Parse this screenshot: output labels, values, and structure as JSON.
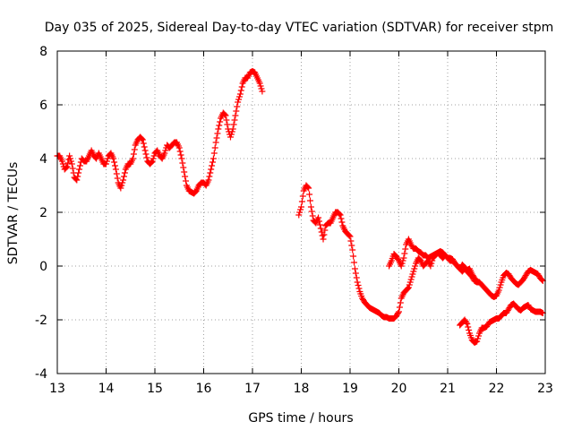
{
  "chart_data": {
    "type": "scatter",
    "title": "Day 035 of 2025, Sidereal Day-to-day VTEC variation (SDTVAR) for receiver stpm",
    "xlabel": "GPS time / hours",
    "ylabel": "SDTVAR / TECUs",
    "xlim": [
      13,
      23
    ],
    "ylim": [
      -4,
      8
    ],
    "xticks": [
      13,
      14,
      15,
      16,
      17,
      18,
      19,
      20,
      21,
      22,
      23
    ],
    "yticks": [
      -4,
      -2,
      0,
      2,
      4,
      6,
      8
    ],
    "grid": true,
    "marker": "+",
    "color": "#ff0000",
    "series": [
      {
        "segments": [
          [
            [
              13.0,
              4.1
            ],
            [
              13.05,
              4.1
            ],
            [
              13.1,
              3.9
            ],
            [
              13.15,
              3.6
            ],
            [
              13.2,
              3.7
            ],
            [
              13.25,
              4.1
            ],
            [
              13.3,
              3.8
            ],
            [
              13.35,
              3.3
            ],
            [
              13.4,
              3.2
            ],
            [
              13.45,
              3.6
            ],
            [
              13.5,
              4.0
            ],
            [
              13.55,
              3.9
            ],
            [
              13.6,
              3.9
            ],
            [
              13.65,
              4.1
            ],
            [
              13.7,
              4.3
            ],
            [
              13.75,
              4.1
            ],
            [
              13.8,
              4.0
            ],
            [
              13.85,
              4.2
            ],
            [
              13.9,
              4.0
            ],
            [
              13.95,
              3.8
            ],
            [
              14.0,
              3.8
            ],
            [
              14.05,
              4.1
            ],
            [
              14.1,
              4.2
            ],
            [
              14.15,
              4.0
            ],
            [
              14.2,
              3.6
            ],
            [
              14.25,
              3.1
            ],
            [
              14.3,
              2.9
            ],
            [
              14.35,
              3.2
            ],
            [
              14.4,
              3.6
            ],
            [
              14.45,
              3.8
            ],
            [
              14.5,
              3.8
            ],
            [
              14.55,
              4.0
            ],
            [
              14.6,
              4.5
            ],
            [
              14.65,
              4.7
            ],
            [
              14.7,
              4.8
            ],
            [
              14.75,
              4.7
            ],
            [
              14.8,
              4.3
            ],
            [
              14.85,
              3.9
            ],
            [
              14.9,
              3.8
            ],
            [
              14.95,
              3.9
            ],
            [
              15.0,
              4.2
            ],
            [
              15.05,
              4.3
            ],
            [
              15.1,
              4.1
            ],
            [
              15.15,
              4.0
            ],
            [
              15.2,
              4.2
            ],
            [
              15.25,
              4.5
            ],
            [
              15.3,
              4.4
            ],
            [
              15.35,
              4.5
            ],
            [
              15.4,
              4.6
            ],
            [
              15.45,
              4.6
            ],
            [
              15.5,
              4.4
            ],
            [
              15.55,
              4.0
            ],
            [
              15.6,
              3.5
            ],
            [
              15.65,
              3.0
            ],
            [
              15.7,
              2.8
            ],
            [
              15.75,
              2.75
            ],
            [
              15.8,
              2.7
            ],
            [
              15.85,
              2.8
            ],
            [
              15.9,
              3.0
            ],
            [
              15.95,
              3.1
            ],
            [
              16.0,
              3.1
            ],
            [
              16.05,
              3.0
            ],
            [
              16.1,
              3.2
            ],
            [
              16.15,
              3.6
            ],
            [
              16.2,
              4.0
            ],
            [
              16.25,
              4.6
            ],
            [
              16.3,
              5.1
            ],
            [
              16.35,
              5.5
            ],
            [
              16.4,
              5.7
            ],
            [
              16.45,
              5.6
            ],
            [
              16.5,
              5.1
            ],
            [
              16.55,
              4.8
            ],
            [
              16.6,
              5.1
            ],
            [
              16.65,
              5.6
            ],
            [
              16.7,
              6.1
            ],
            [
              16.75,
              6.4
            ],
            [
              16.8,
              6.8
            ],
            [
              16.85,
              7.0
            ],
            [
              16.9,
              7.0
            ],
            [
              16.95,
              7.2
            ],
            [
              17.0,
              7.25
            ],
            [
              17.05,
              7.2
            ],
            [
              17.1,
              7.0
            ],
            [
              17.15,
              6.8
            ],
            [
              17.2,
              6.5
            ]
          ],
          [
            [
              17.95,
              1.9
            ],
            [
              18.0,
              2.2
            ],
            [
              18.05,
              2.8
            ],
            [
              18.1,
              3.0
            ],
            [
              18.15,
              2.9
            ],
            [
              18.2,
              2.2
            ],
            [
              18.25,
              1.7
            ],
            [
              18.3,
              1.6
            ],
            [
              18.35,
              1.8
            ],
            [
              18.4,
              1.4
            ],
            [
              18.45,
              1.0
            ],
            [
              18.5,
              1.5
            ],
            [
              18.55,
              1.6
            ],
            [
              18.6,
              1.6
            ],
            [
              18.65,
              1.8
            ],
            [
              18.7,
              2.0
            ],
            [
              18.75,
              2.0
            ],
            [
              18.8,
              1.9
            ],
            [
              18.85,
              1.5
            ],
            [
              18.9,
              1.3
            ],
            [
              18.95,
              1.2
            ],
            [
              19.0,
              1.1
            ],
            [
              19.05,
              0.6
            ],
            [
              19.1,
              -0.1
            ],
            [
              19.15,
              -0.6
            ],
            [
              19.2,
              -0.95
            ],
            [
              19.25,
              -1.2
            ],
            [
              19.3,
              -1.35
            ],
            [
              19.35,
              -1.45
            ],
            [
              19.4,
              -1.55
            ],
            [
              19.45,
              -1.6
            ],
            [
              19.5,
              -1.65
            ],
            [
              19.55,
              -1.7
            ],
            [
              19.6,
              -1.75
            ],
            [
              19.65,
              -1.85
            ],
            [
              19.7,
              -1.9
            ],
            [
              19.75,
              -1.9
            ],
            [
              19.8,
              -1.95
            ],
            [
              19.85,
              -1.95
            ],
            [
              19.9,
              -1.95
            ],
            [
              19.95,
              -1.85
            ],
            [
              20.0,
              -1.7
            ],
            [
              20.05,
              -1.2
            ],
            [
              20.1,
              -1.0
            ],
            [
              20.15,
              -0.9
            ],
            [
              20.2,
              -0.8
            ],
            [
              20.25,
              -0.5
            ],
            [
              20.3,
              -0.2
            ],
            [
              20.35,
              0.1
            ],
            [
              20.4,
              0.3
            ],
            [
              20.45,
              0.2
            ],
            [
              20.5,
              0.0
            ],
            [
              20.55,
              0.1
            ],
            [
              20.6,
              0.2
            ],
            [
              20.65,
              0.0
            ],
            [
              20.7,
              0.3
            ],
            [
              20.75,
              0.4
            ],
            [
              20.8,
              0.5
            ],
            [
              20.85,
              0.4
            ],
            [
              20.9,
              0.3
            ],
            [
              20.95,
              0.4
            ],
            [
              21.0,
              0.3
            ],
            [
              21.05,
              0.2
            ],
            [
              21.1,
              0.2
            ],
            [
              21.15,
              0.1
            ],
            [
              21.2,
              0.0
            ],
            [
              21.25,
              -0.1
            ],
            [
              21.3,
              -0.2
            ],
            [
              21.35,
              -0.1
            ],
            [
              21.4,
              -0.2
            ],
            [
              21.45,
              -0.3
            ],
            [
              21.5,
              -0.4
            ],
            [
              21.55,
              -0.55
            ],
            [
              21.6,
              -0.6
            ],
            [
              21.65,
              -0.6
            ],
            [
              21.7,
              -0.7
            ],
            [
              21.75,
              -0.8
            ],
            [
              21.8,
              -0.9
            ],
            [
              21.85,
              -1.0
            ],
            [
              21.9,
              -1.1
            ],
            [
              21.95,
              -1.15
            ],
            [
              22.0,
              -1.1
            ],
            [
              22.05,
              -0.9
            ],
            [
              22.1,
              -0.6
            ],
            [
              22.15,
              -0.35
            ],
            [
              22.2,
              -0.25
            ],
            [
              22.25,
              -0.3
            ],
            [
              22.3,
              -0.45
            ],
            [
              22.35,
              -0.55
            ],
            [
              22.4,
              -0.65
            ],
            [
              22.45,
              -0.7
            ],
            [
              22.5,
              -0.6
            ],
            [
              22.55,
              -0.5
            ],
            [
              22.6,
              -0.35
            ],
            [
              22.65,
              -0.2
            ],
            [
              22.7,
              -0.15
            ],
            [
              22.75,
              -0.2
            ],
            [
              22.8,
              -0.25
            ],
            [
              22.85,
              -0.3
            ],
            [
              22.9,
              -0.45
            ],
            [
              22.95,
              -0.55
            ]
          ],
          [
            [
              19.8,
              0.0
            ],
            [
              19.85,
              0.2
            ],
            [
              19.9,
              0.45
            ],
            [
              19.95,
              0.35
            ],
            [
              20.0,
              0.2
            ],
            [
              20.05,
              0.0
            ],
            [
              20.1,
              0.3
            ],
            [
              20.15,
              0.8
            ],
            [
              20.2,
              1.0
            ],
            [
              20.25,
              0.8
            ],
            [
              20.3,
              0.65
            ],
            [
              20.35,
              0.65
            ],
            [
              20.4,
              0.55
            ],
            [
              20.45,
              0.5
            ],
            [
              20.5,
              0.4
            ],
            [
              20.55,
              0.4
            ],
            [
              20.6,
              0.3
            ],
            [
              20.65,
              0.35
            ],
            [
              20.7,
              0.4
            ],
            [
              20.75,
              0.45
            ],
            [
              20.8,
              0.5
            ],
            [
              20.85,
              0.55
            ],
            [
              20.9,
              0.5
            ],
            [
              20.95,
              0.4
            ],
            [
              21.0,
              0.3
            ],
            [
              21.05,
              0.3
            ],
            [
              21.1,
              0.25
            ],
            [
              21.15,
              0.1
            ],
            [
              21.2,
              0.0
            ],
            [
              21.25,
              -0.1
            ],
            [
              21.3,
              0.05
            ],
            [
              21.35,
              -0.05
            ],
            [
              21.4,
              -0.15
            ],
            [
              21.45,
              -0.1
            ],
            [
              21.5,
              -0.3
            ],
            [
              21.55,
              -0.45
            ],
            [
              21.6,
              -0.55
            ]
          ],
          [
            [
              21.25,
              -2.2
            ],
            [
              21.3,
              -2.1
            ],
            [
              21.35,
              -2.0
            ],
            [
              21.4,
              -2.15
            ],
            [
              21.45,
              -2.5
            ],
            [
              21.5,
              -2.75
            ],
            [
              21.55,
              -2.85
            ],
            [
              21.6,
              -2.8
            ],
            [
              21.65,
              -2.5
            ],
            [
              21.7,
              -2.3
            ],
            [
              21.75,
              -2.3
            ],
            [
              21.8,
              -2.25
            ],
            [
              21.85,
              -2.1
            ],
            [
              21.9,
              -2.05
            ],
            [
              21.95,
              -2.0
            ],
            [
              22.0,
              -1.95
            ],
            [
              22.05,
              -1.95
            ],
            [
              22.1,
              -1.85
            ],
            [
              22.15,
              -1.75
            ],
            [
              22.2,
              -1.75
            ],
            [
              22.25,
              -1.6
            ],
            [
              22.3,
              -1.45
            ],
            [
              22.35,
              -1.4
            ],
            [
              22.4,
              -1.5
            ],
            [
              22.45,
              -1.6
            ],
            [
              22.5,
              -1.65
            ],
            [
              22.55,
              -1.55
            ],
            [
              22.6,
              -1.5
            ],
            [
              22.65,
              -1.45
            ],
            [
              22.7,
              -1.6
            ],
            [
              22.75,
              -1.65
            ],
            [
              22.8,
              -1.7
            ],
            [
              22.85,
              -1.7
            ],
            [
              22.9,
              -1.7
            ],
            [
              22.95,
              -1.75
            ]
          ]
        ]
      }
    ]
  }
}
